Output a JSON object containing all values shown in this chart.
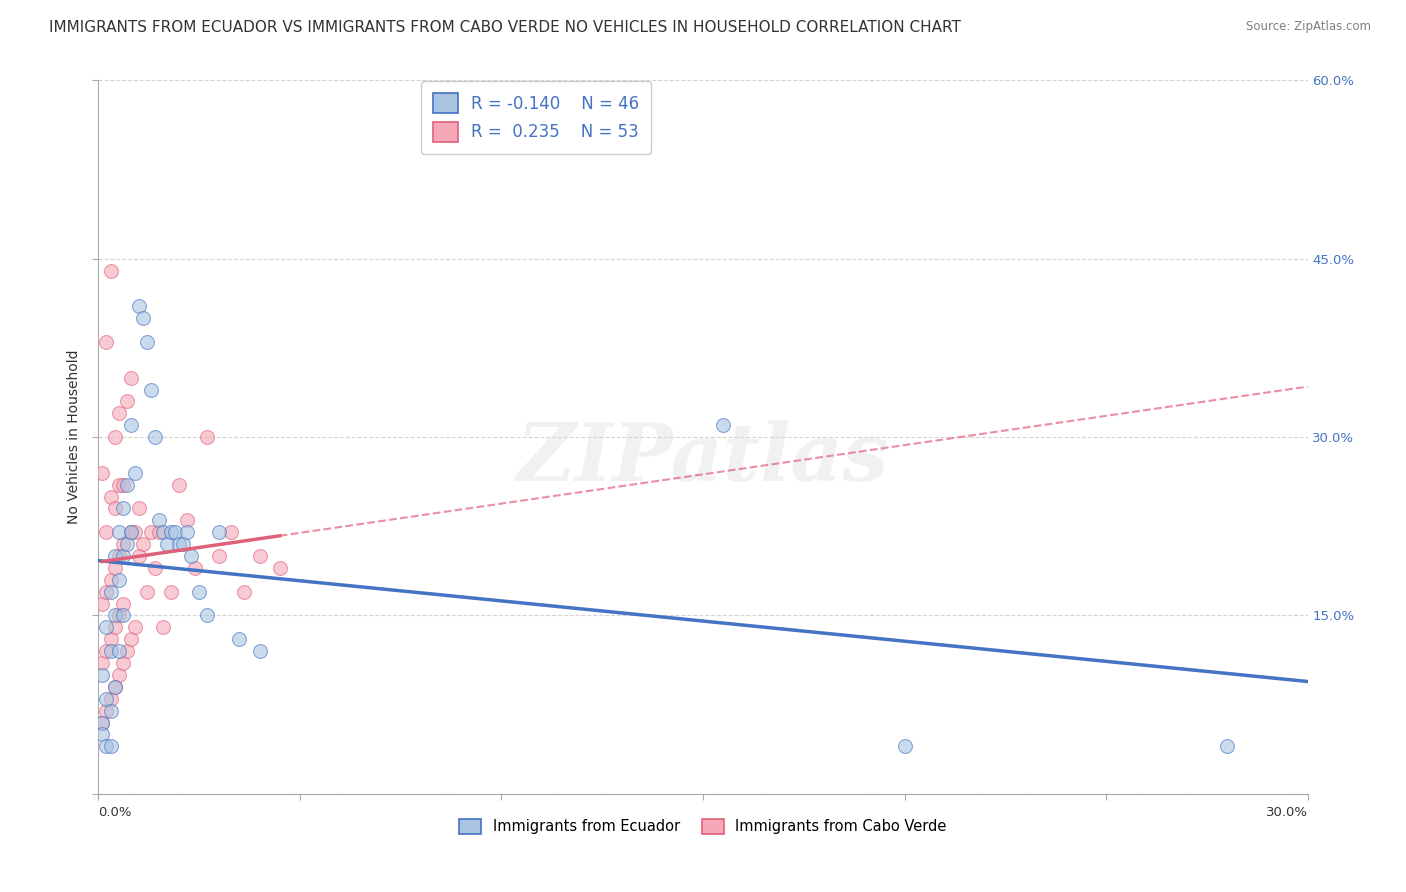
{
  "title": "IMMIGRANTS FROM ECUADOR VS IMMIGRANTS FROM CABO VERDE NO VEHICLES IN HOUSEHOLD CORRELATION CHART",
  "source": "Source: ZipAtlas.com",
  "ylabel_left": "No Vehicles in Household",
  "xlim": [
    0.0,
    0.3
  ],
  "ylim": [
    0.0,
    0.6
  ],
  "r_ecuador": -0.14,
  "n_ecuador": 46,
  "r_cabo_verde": 0.235,
  "n_cabo_verde": 53,
  "color_ecuador": "#a8c4e0",
  "color_cabo_verde": "#f4a8b8",
  "trendline_ecuador_color": "#4472c4",
  "trendline_cabo_verde_color": "#e0607a",
  "background_color": "#ffffff",
  "watermark": "ZIPatlas",
  "ecuador_x": [
    0.001,
    0.001,
    0.001,
    0.002,
    0.002,
    0.002,
    0.003,
    0.003,
    0.003,
    0.003,
    0.004,
    0.004,
    0.004,
    0.005,
    0.005,
    0.005,
    0.006,
    0.006,
    0.006,
    0.007,
    0.007,
    0.008,
    0.008,
    0.009,
    0.01,
    0.011,
    0.012,
    0.013,
    0.014,
    0.015,
    0.016,
    0.017,
    0.018,
    0.019,
    0.02,
    0.021,
    0.022,
    0.023,
    0.025,
    0.027,
    0.03,
    0.035,
    0.04,
    0.155,
    0.2,
    0.28
  ],
  "ecuador_y": [
    0.06,
    0.1,
    0.05,
    0.08,
    0.14,
    0.04,
    0.17,
    0.12,
    0.07,
    0.04,
    0.2,
    0.15,
    0.09,
    0.22,
    0.18,
    0.12,
    0.24,
    0.2,
    0.15,
    0.26,
    0.21,
    0.31,
    0.22,
    0.27,
    0.41,
    0.4,
    0.38,
    0.34,
    0.3,
    0.23,
    0.22,
    0.21,
    0.22,
    0.22,
    0.21,
    0.21,
    0.22,
    0.2,
    0.17,
    0.15,
    0.22,
    0.13,
    0.12,
    0.31,
    0.04,
    0.04
  ],
  "cabo_verde_x": [
    0.001,
    0.001,
    0.001,
    0.001,
    0.002,
    0.002,
    0.002,
    0.002,
    0.002,
    0.003,
    0.003,
    0.003,
    0.003,
    0.003,
    0.004,
    0.004,
    0.004,
    0.004,
    0.004,
    0.005,
    0.005,
    0.005,
    0.005,
    0.005,
    0.006,
    0.006,
    0.006,
    0.006,
    0.007,
    0.007,
    0.008,
    0.008,
    0.008,
    0.009,
    0.009,
    0.01,
    0.01,
    0.011,
    0.012,
    0.013,
    0.014,
    0.015,
    0.016,
    0.018,
    0.02,
    0.022,
    0.024,
    0.027,
    0.03,
    0.033,
    0.036,
    0.04,
    0.045
  ],
  "cabo_verde_y": [
    0.06,
    0.11,
    0.16,
    0.27,
    0.07,
    0.12,
    0.17,
    0.22,
    0.38,
    0.08,
    0.13,
    0.18,
    0.25,
    0.44,
    0.09,
    0.14,
    0.19,
    0.24,
    0.3,
    0.1,
    0.15,
    0.2,
    0.26,
    0.32,
    0.11,
    0.16,
    0.21,
    0.26,
    0.12,
    0.33,
    0.13,
    0.22,
    0.35,
    0.14,
    0.22,
    0.2,
    0.24,
    0.21,
    0.17,
    0.22,
    0.19,
    0.22,
    0.14,
    0.17,
    0.26,
    0.23,
    0.19,
    0.3,
    0.2,
    0.22,
    0.17,
    0.2,
    0.19
  ],
  "grid_color": "#d0d0d0",
  "title_fontsize": 11,
  "axis_fontsize": 9.5,
  "marker_size": 100,
  "marker_alpha": 0.6
}
